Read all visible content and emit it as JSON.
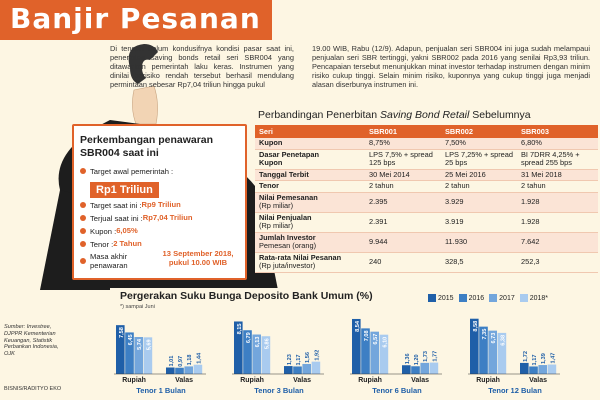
{
  "title": "Banjir Pesanan",
  "intro_a": "Di tengah belum kondusifnya kondisi pasar saat ini, penerbitan saving bonds retail seri SBR004 yang ditawarkan pemerintah laku keras. Instrumen yang dinilai berisiko rendah tersebut berhasil mendulang permintaan sebesar Rp7,04 triliun hingga pukul",
  "intro_b": "19.00 WIB, Rabu (12/9). Adapun, penjualan seri SBR004 ini juga sudah melampaui penjualan seri SBR tertinggi, yakni SBR002 pada 2016 yang senilai Rp3,93 triliun. Pencapaian tersebut menunjukkan minat investor terhadap instrumen dengan minim risiko cukup tinggi. Selain minim risiko, kuponnya yang cukup tinggi juga menjadi alasan diserbunya instrumen ini.",
  "info_box": {
    "title": "Perkembangan penawaran SBR004 saat ini",
    "target_awal_label": "Target awal pemerintah :",
    "target_awal_value": "Rp1 Triliun",
    "items": [
      {
        "label": "Target saat ini : ",
        "value": "Rp9 Triliun"
      },
      {
        "label": "Terjual saat ini : ",
        "value": "Rp7,04 Triliun"
      },
      {
        "label": "Kupon : ",
        "value": "6,05%"
      },
      {
        "label": "Tenor : ",
        "value": "2 Tahun"
      }
    ],
    "masa_label": "Masa akhir penawaran",
    "masa_value": "13 September 2018, pukul 10.00 WIB"
  },
  "table": {
    "title_prefix": "Perbandingan Penerbitan ",
    "title_em": "Saving Bond Retail",
    "title_suffix": " Sebelumnya",
    "headers": [
      "Seri",
      "SBR001",
      "SBR002",
      "SBR003"
    ],
    "rows": [
      {
        "label": "Kupon",
        "sub": "",
        "cells": [
          "8,75%",
          "7,50%",
          "6,80%"
        ]
      },
      {
        "label": "Dasar Penetapan",
        "sub": "Kupon",
        "cells": [
          "LPS 7,5% + spread 125 bps",
          "LPS 7,25% + spread 25 bps",
          "BI 7DRR 4,25% + spread 255 bps"
        ]
      },
      {
        "label": "Tanggal Terbit",
        "sub": "",
        "cells": [
          "30 Mei 2014",
          "25 Mei 2016",
          "31 Mei 2018"
        ]
      },
      {
        "label": "Tenor",
        "sub": "",
        "cells": [
          "2 tahun",
          "2 tahun",
          "2 tahun"
        ]
      },
      {
        "label": "Nilai Pemesanan",
        "sub": "(Rp miliar)",
        "cells": [
          "2.395",
          "3.929",
          "1.928"
        ]
      },
      {
        "label": "Nilai Penjualan",
        "sub": "(Rp miliar)",
        "cells": [
          "2.391",
          "3.919",
          "1.928"
        ]
      },
      {
        "label": "Jumlah Investor",
        "sub": "Pemesan (orang)",
        "cells": [
          "9.944",
          "11.930",
          "7.642"
        ]
      },
      {
        "label": "Rata-rata Nilai Pesanan",
        "sub": "(Rp juta/investor)",
        "cells": [
          "240",
          "328,5",
          "252,3"
        ]
      }
    ]
  },
  "chart_title": "Pergerakan Suku Bunga Deposito Bank Umum (%)",
  "chart_note": "*) sampai Juni",
  "sources": "Sumber: Investree, DJPPR Kementerian Keuangan, Statistik Perbankan Indonesia, OJK",
  "credit": "BISNIS/RADITYO EKO",
  "colors": {
    "accent": "#e0622a",
    "c2015": "#1f5fa8",
    "c2016": "#3d7fc4",
    "c2017": "#73a6dc",
    "c2018": "#a9cbef"
  },
  "chart_data": {
    "type": "bar",
    "series_names": [
      "2015",
      "2016",
      "2017",
      "2018*"
    ],
    "groups": [
      {
        "name": "Tenor 1 Bulan",
        "categories": [
          "Rupiah",
          "Valas"
        ],
        "values": [
          [
            7.58,
            6.45,
            5.74,
            5.69
          ],
          [
            1.01,
            0.97,
            1.18,
            1.44
          ]
        ]
      },
      {
        "name": "Tenor 3 Bulan",
        "categories": [
          "Rupiah",
          "Valas"
        ],
        "values": [
          [
            8.15,
            6.79,
            6.13,
            5.86
          ],
          [
            1.23,
            1.17,
            1.56,
            1.92
          ]
        ]
      },
      {
        "name": "Tenor 6 Bulan",
        "categories": [
          "Rupiah",
          "Valas"
        ],
        "values": [
          [
            8.54,
            7.08,
            6.57,
            6.1
          ],
          [
            1.36,
            1.2,
            1.73,
            1.77
          ]
        ]
      },
      {
        "name": "Tenor 12 Bulan",
        "categories": [
          "Rupiah",
          "Valas"
        ],
        "values": [
          [
            8.58,
            7.35,
            6.73,
            6.38
          ],
          [
            1.72,
            1.17,
            1.39,
            1.47
          ]
        ]
      }
    ]
  }
}
